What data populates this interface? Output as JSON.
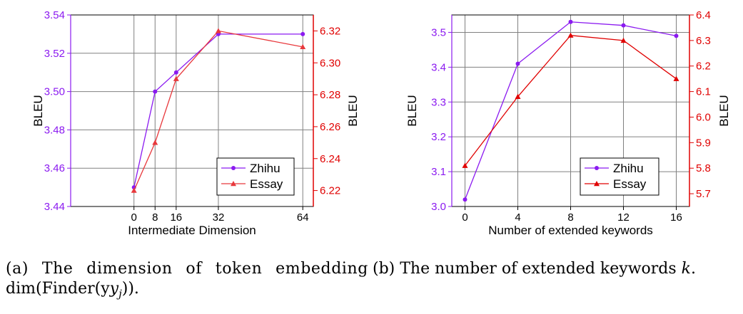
{
  "chart_data": [
    {
      "type": "line",
      "xlabel": "Intermediate Dimension",
      "ylabel_left": "BLEU",
      "ylabel_right": "BLEU",
      "x": [
        0,
        8,
        16,
        32,
        64
      ],
      "x_ticks": [
        "0",
        "8",
        "16",
        "32",
        "64"
      ],
      "xlim": [
        -24,
        68
      ],
      "ylim_left": [
        3.44,
        3.54
      ],
      "ylim_right": [
        6.21,
        6.33
      ],
      "yticks_left": [
        "3.44",
        "3.46",
        "3.48",
        "3.50",
        "3.52",
        "3.54"
      ],
      "yticks_right": [
        "6.22",
        "6.24",
        "6.26",
        "6.28",
        "6.30",
        "6.32"
      ],
      "grid": true,
      "legend": "bottom-right",
      "series": [
        {
          "name": "Zhihu",
          "axis": "left",
          "color": "#8B1AF0",
          "marker": "circle",
          "values": [
            3.45,
            3.5,
            3.51,
            3.53,
            3.53
          ]
        },
        {
          "name": "Essay",
          "axis": "right",
          "color": "#E8383C",
          "marker": "triangle",
          "values": [
            6.22,
            6.25,
            6.29,
            6.32,
            6.31
          ]
        }
      ],
      "caption": "(a) The dimension of token embedding dim(Finder(y",
      "caption_line1": "(a) The dimension of token embedding",
      "caption_line2": "dim(Finder(y"
    },
    {
      "type": "line",
      "xlabel": "Number of extended keywords",
      "ylabel_left": "BLEU",
      "ylabel_right": "BLEU",
      "x": [
        0,
        4,
        8,
        12,
        16
      ],
      "x_ticks": [
        "0",
        "4",
        "8",
        "12",
        "16"
      ],
      "xlim": [
        -1,
        17
      ],
      "ylim_left": [
        3.0,
        3.55
      ],
      "ylim_right": [
        5.65,
        6.4
      ],
      "yticks_left": [
        "3.0",
        "3.1",
        "3.2",
        "3.3",
        "3.4",
        "3.5"
      ],
      "yticks_right": [
        "5.7",
        "5.8",
        "5.9",
        "6.0",
        "6.1",
        "6.2",
        "6.3",
        "6.4"
      ],
      "grid": true,
      "legend": "bottom-right",
      "series": [
        {
          "name": "Zhihu",
          "axis": "left",
          "color": "#8B1AF0",
          "marker": "circle",
          "values": [
            3.02,
            3.41,
            3.53,
            3.52,
            3.49
          ]
        },
        {
          "name": "Essay",
          "axis": "right",
          "color": "#E00000",
          "marker": "triangle",
          "values": [
            5.81,
            6.08,
            6.32,
            6.3,
            6.15
          ]
        }
      ],
      "caption": "(b) The number of extended keywords k."
    }
  ],
  "colors": {
    "left_axis": "#8B1AF0",
    "right_axis": "#E00000",
    "grid": "#808080"
  }
}
